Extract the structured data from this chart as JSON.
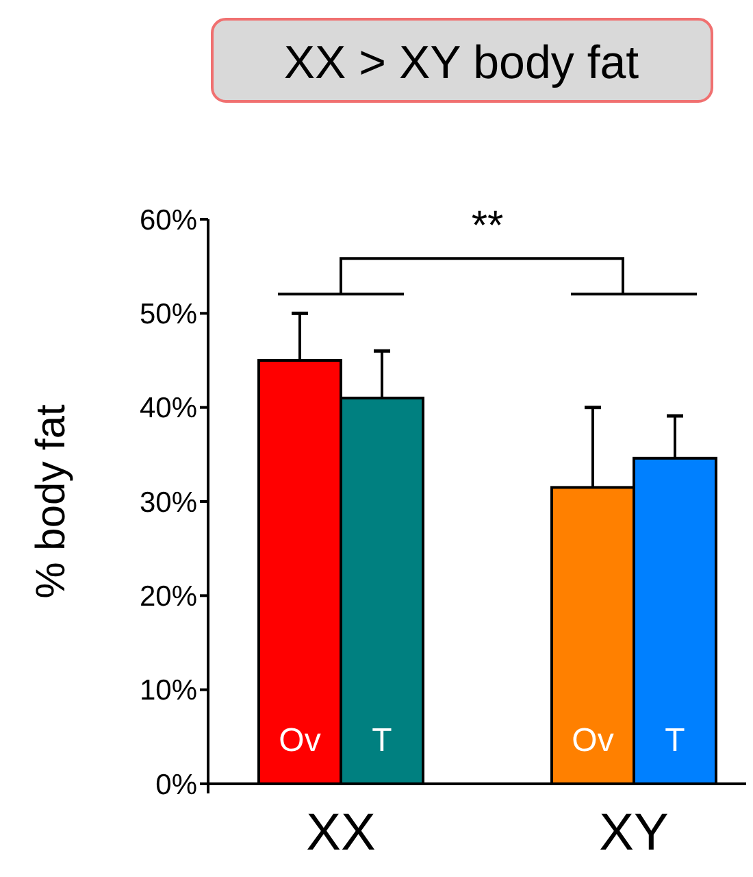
{
  "chart_data": {
    "type": "bar",
    "title": "XX > XY body fat",
    "ylabel": "% body fat",
    "categories": [
      "XX",
      "XY"
    ],
    "series": [
      {
        "name": "Ov",
        "colors": [
          "#ff0000",
          "#ff8000"
        ],
        "values": [
          45,
          31.5
        ],
        "errors": [
          [
            45,
            50
          ],
          [
            31.5,
            40
          ]
        ]
      },
      {
        "name": "T",
        "colors": [
          "#008080",
          "#0080ff"
        ],
        "values": [
          41,
          34.6
        ],
        "errors": [
          [
            41,
            46
          ],
          [
            34.6,
            39.1
          ]
        ]
      }
    ],
    "ylim": [
      0,
      60
    ],
    "yticks": [
      {
        "value": 0,
        "label": "0%"
      },
      {
        "value": 10,
        "label": "10%"
      },
      {
        "value": 20,
        "label": "20%"
      },
      {
        "value": 30,
        "label": "30%"
      },
      {
        "value": 40,
        "label": "40%"
      },
      {
        "value": 50,
        "label": "50%"
      },
      {
        "value": 60,
        "label": "60%"
      }
    ],
    "annotations": [
      "**"
    ],
    "legend": false
  }
}
